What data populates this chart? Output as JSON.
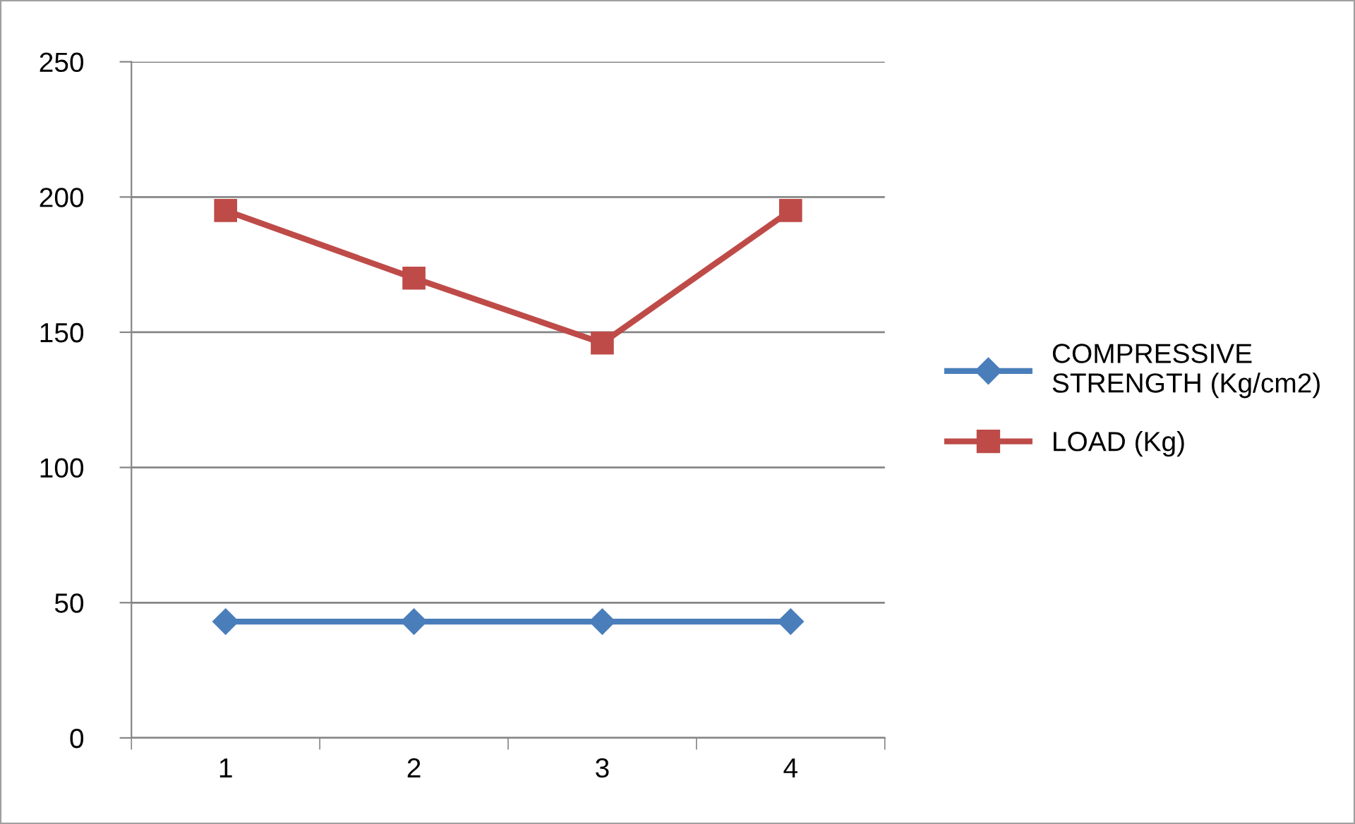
{
  "chart_data": {
    "type": "line",
    "categories": [
      "1",
      "2",
      "3",
      "4"
    ],
    "series": [
      {
        "name": "COMPRESSIVE STRENGTH (Kg/cm2)",
        "color": "#4a7ebb",
        "values": [
          43,
          43,
          43,
          43
        ],
        "marker": "diamond"
      },
      {
        "name": "LOAD (Kg)",
        "color": "#be4b48",
        "values": [
          195,
          170,
          146,
          195
        ],
        "marker": "square"
      }
    ],
    "ylim": [
      0,
      250
    ],
    "yticks": [
      0,
      50,
      100,
      150,
      200,
      250
    ],
    "grid": "y",
    "legend": "right",
    "line_style": "solid"
  }
}
